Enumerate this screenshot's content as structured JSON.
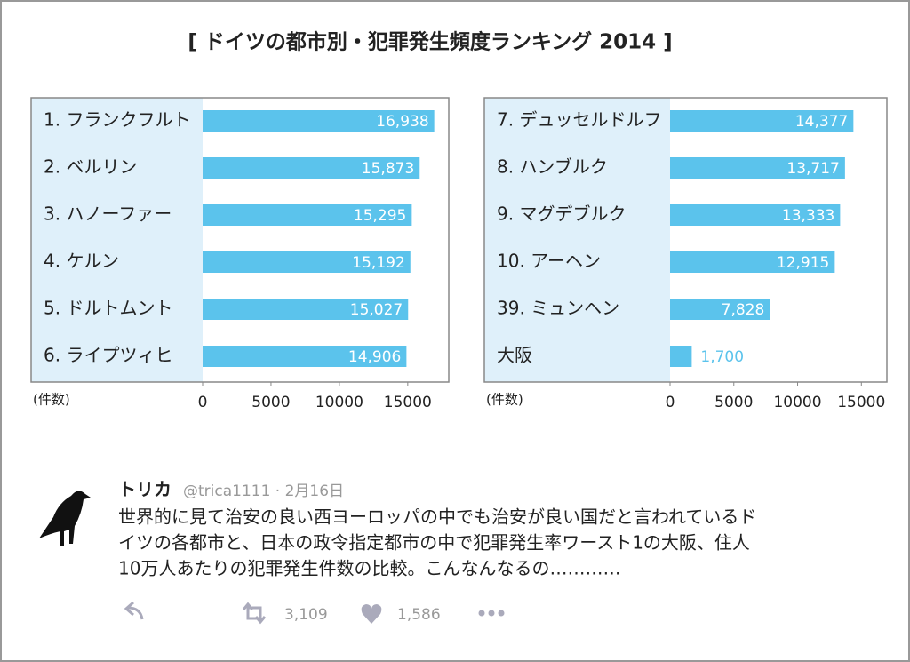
{
  "figure": {
    "title": "[ ドイツの都市別・犯罪発生頻度ランキング 2014 ]"
  },
  "chart_data": [
    {
      "type": "bar",
      "orientation": "horizontal",
      "categories": [
        "1. フランクフルト",
        "2. ベルリン",
        "3. ハノーファー",
        "4. ケルン",
        "5. ドルトムント",
        "6. ライプツィヒ"
      ],
      "values": [
        16938,
        15873,
        15295,
        15192,
        15027,
        14906
      ],
      "value_labels": [
        "16,938",
        "15,873",
        "15,295",
        "15,192",
        "15,027",
        "14,906"
      ],
      "color": "#5bc3ec",
      "xlim": [
        0,
        18000
      ],
      "xticks": [
        0,
        5000,
        10000,
        15000
      ],
      "xlabel": "(件数)"
    },
    {
      "type": "bar",
      "orientation": "horizontal",
      "categories": [
        "7. デュッセルドルフ",
        "8. ハンブルク",
        "9. マグデブルク",
        "10. アーヘン",
        "39. ミュンヘン",
        "大阪"
      ],
      "values": [
        14377,
        13717,
        13333,
        12915,
        7828,
        1700
      ],
      "value_labels": [
        "14,377",
        "13,717",
        "13,333",
        "12,915",
        "7,828",
        "1,700"
      ],
      "color": "#5bc3ec",
      "xlim": [
        0,
        17000
      ],
      "xticks": [
        0,
        5000,
        10000,
        15000
      ],
      "xlabel": "(件数)"
    }
  ],
  "tweet": {
    "name": "トリカ",
    "meta": "@trica1111 · 2月16日",
    "text_lines": [
      "世界的に見て治安の良い西ヨーロッパの中でも治安が良い国だと言われているド",
      "イツの各都市と、日本の政令指定都市の中で犯罪発生率ワースト1の大阪、住人",
      "10万人あたりの犯罪発生件数の比較。こんなんなるの…………"
    ],
    "retweets": "3,109",
    "likes": "1,586"
  }
}
